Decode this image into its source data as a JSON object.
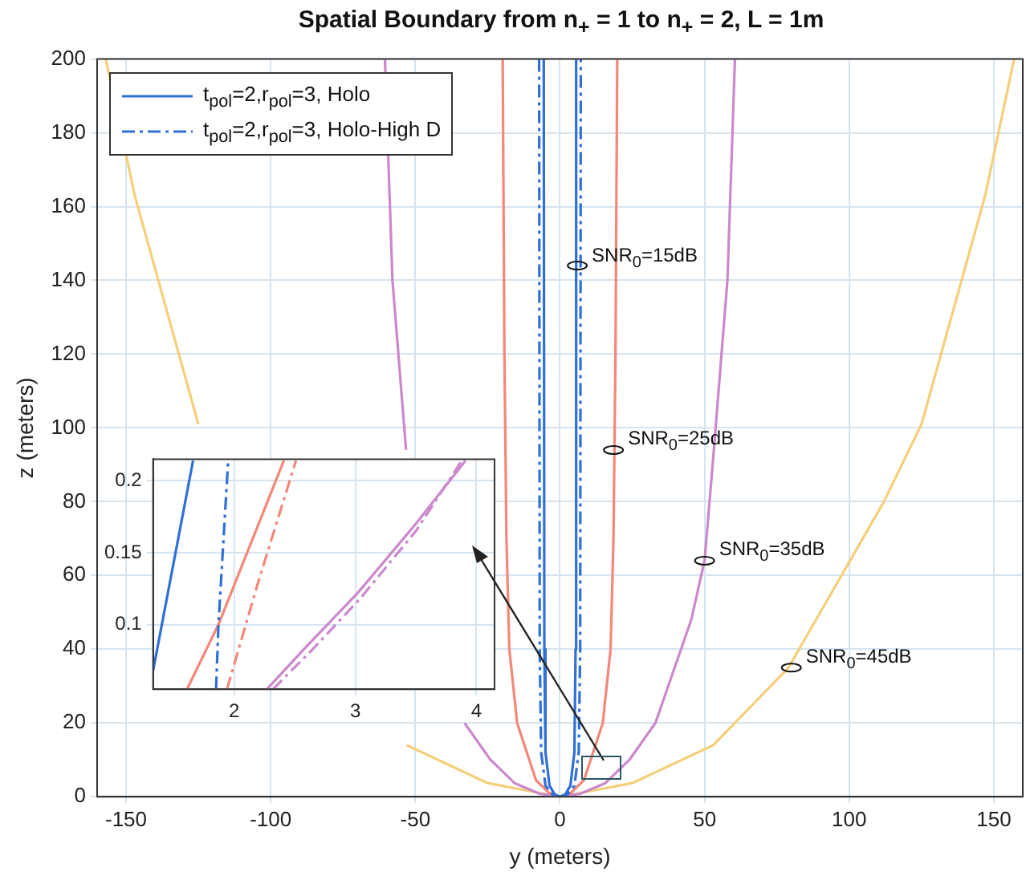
{
  "chart_data": [
    {
      "type": "line",
      "title": "Spatial Boundary from n$_{+}$ = 1 to n$_{+}$ = 2, L = 1m",
      "xlabel": "y (meters)",
      "ylabel": "z (meters)",
      "xlim": [
        -160,
        160
      ],
      "ylim": [
        0,
        200
      ],
      "xticks": [
        -150,
        -100,
        -50,
        0,
        50,
        100,
        150
      ],
      "yticks": [
        0,
        20,
        40,
        60,
        80,
        100,
        120,
        140,
        160,
        180,
        200
      ],
      "grid": true,
      "legend": "top left",
      "marker": "none",
      "series": [
        {
          "name": "t$_{pol}$=2,r$_{pol}$=3, Holo",
          "color": "#2f6fd6",
          "line_style": "solid",
          "x": [
            -5.6,
            -5.4,
            -5,
            -3.6,
            -1.8,
            0,
            1.8,
            3.6,
            5,
            5.4,
            5.6
          ],
          "values": [
            200,
            40,
            12,
            3,
            0.6,
            0,
            0.6,
            3,
            12,
            40,
            200
          ]
        },
        {
          "name": "t$_{pol}$=2,r$_{pol}$=3, Holo-High D",
          "color": "#2f6fd6",
          "line_style": "dashdot",
          "x": [
            -7.2,
            -7,
            -6.5,
            -5,
            -2.6,
            0,
            2.6,
            5,
            6.5,
            7,
            7.2
          ],
          "values": [
            200,
            40,
            12,
            3,
            0.6,
            0,
            0.6,
            3,
            12,
            40,
            200
          ]
        },
        {
          "color": "#f4877a",
          "line_style": "solid",
          "x": [
            -19.8,
            -19.2,
            -18.5,
            -17.5,
            -14.8,
            -8.3,
            -4,
            0,
            4,
            8.3,
            14.8,
            17.5,
            18.5,
            19.2,
            19.8
          ],
          "values": [
            200,
            120,
            70,
            40,
            20,
            4.5,
            1.2,
            0,
            1.2,
            4.5,
            20,
            40,
            70,
            120,
            200
          ]
        },
        {
          "color": "#cc88cc",
          "line_style": "solid",
          "x": [
            -60.5,
            -57.9,
            -53.2,
            -50,
            -45.4,
            -33,
            -24,
            -15.7,
            -7,
            0,
            7,
            15.7,
            24,
            33,
            45.4,
            50,
            53.2,
            57.9,
            60.5
          ],
          "values": [
            200,
            140,
            94,
            null,
            null,
            20,
            10,
            3.7,
            0.8,
            0,
            0.8,
            3.7,
            10,
            20,
            48,
            64,
            94,
            140,
            200
          ]
        },
        {
          "color": "#f5cf7a",
          "line_style": "solid",
          "x": [
            -157,
            -147,
            -125,
            -112,
            -79,
            -53,
            -25,
            0,
            25,
            53,
            79,
            112,
            125,
            147,
            157
          ],
          "values": [
            200,
            163,
            101,
            null,
            null,
            14,
            3.7,
            0,
            3.7,
            14,
            35,
            80,
            101,
            163,
            200
          ]
        }
      ],
      "annotations": [
        {
          "text": "SNR$_{0}$=15dB",
          "x": 6,
          "y": 144
        },
        {
          "text": "SNR$_{0}$=25dB",
          "x": 18.5,
          "y": 94
        },
        {
          "text": "SNR$_{0}$=35dB",
          "x": 50,
          "y": 64
        },
        {
          "text": "SNR$_{0}$=45dB",
          "x": 80,
          "y": 35
        }
      ]
    },
    {
      "type": "line",
      "xlim": [
        1.33,
        4.15
      ],
      "ylim": [
        0.055,
        0.215
      ],
      "xticks": [
        2,
        3,
        4
      ],
      "yticks": [
        0.1,
        0.15,
        0.2
      ],
      "grid": true,
      "marker": "none",
      "series": [
        {
          "color": "#2f6fd6",
          "line_style": "solid",
          "x": [
            1.33,
            1.66
          ],
          "values": [
            0.068,
            0.214
          ]
        },
        {
          "color": "#2f6fd6",
          "line_style": "dashdot",
          "x": [
            1.85,
            1.87,
            1.95
          ],
          "values": [
            0.055,
            0.1,
            0.214
          ]
        },
        {
          "color": "#f4877a",
          "line_style": "solid",
          "x": [
            1.61,
            1.87,
            2.41
          ],
          "values": [
            0.055,
            0.1,
            0.214
          ]
        },
        {
          "color": "#f4877a",
          "line_style": "dashdot",
          "x": [
            1.94,
            2.2,
            2.51
          ],
          "values": [
            0.055,
            0.13,
            0.214
          ]
        },
        {
          "color": "#cc88cc",
          "line_style": "solid",
          "x": [
            2.27,
            2.6,
            3.02,
            3.5,
            3.91
          ],
          "values": [
            0.055,
            0.085,
            0.122,
            0.17,
            0.214
          ]
        },
        {
          "color": "#cc88cc",
          "line_style": "dashdot",
          "x": [
            2.32,
            2.65,
            3.04,
            3.5,
            3.88
          ],
          "values": [
            0.055,
            0.083,
            0.118,
            0.165,
            0.214
          ]
        }
      ]
    }
  ]
}
